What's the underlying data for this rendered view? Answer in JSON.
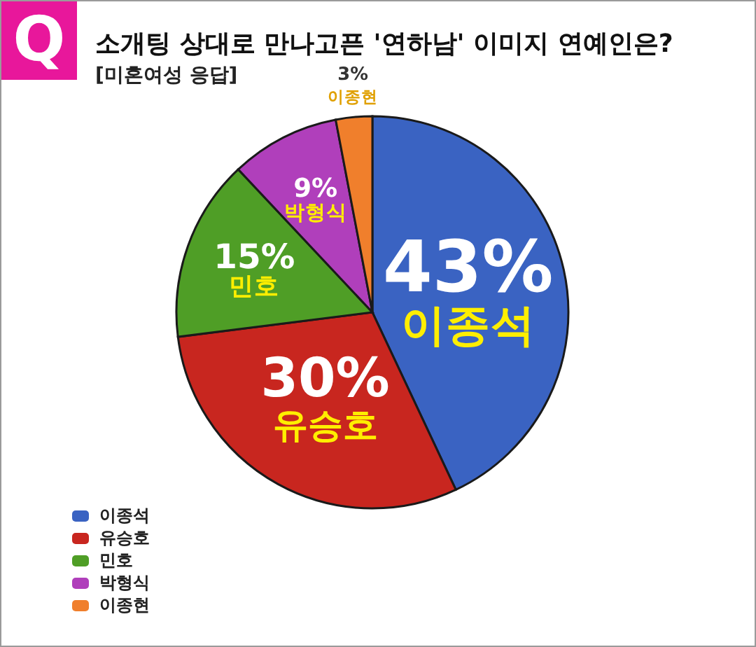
{
  "chart_data": {
    "type": "pie",
    "title": "소개팅 상대로 만나고픈 '연하남' 이미지 연예인은?",
    "subtitle": "[미혼여성 응답]",
    "annotations": [
      "Q"
    ],
    "categories": [
      "이종석",
      "유승호",
      "민호",
      "박형식",
      "이종현"
    ],
    "values": [
      43,
      30,
      15,
      9,
      3
    ],
    "colors": [
      "#3a63c2",
      "#c8261f",
      "#4f9e26",
      "#b03fbb",
      "#f07f2c"
    ],
    "value_labels": [
      "43%",
      "30%",
      "15%",
      "9%",
      "3%"
    ],
    "legend": "bottom left"
  }
}
